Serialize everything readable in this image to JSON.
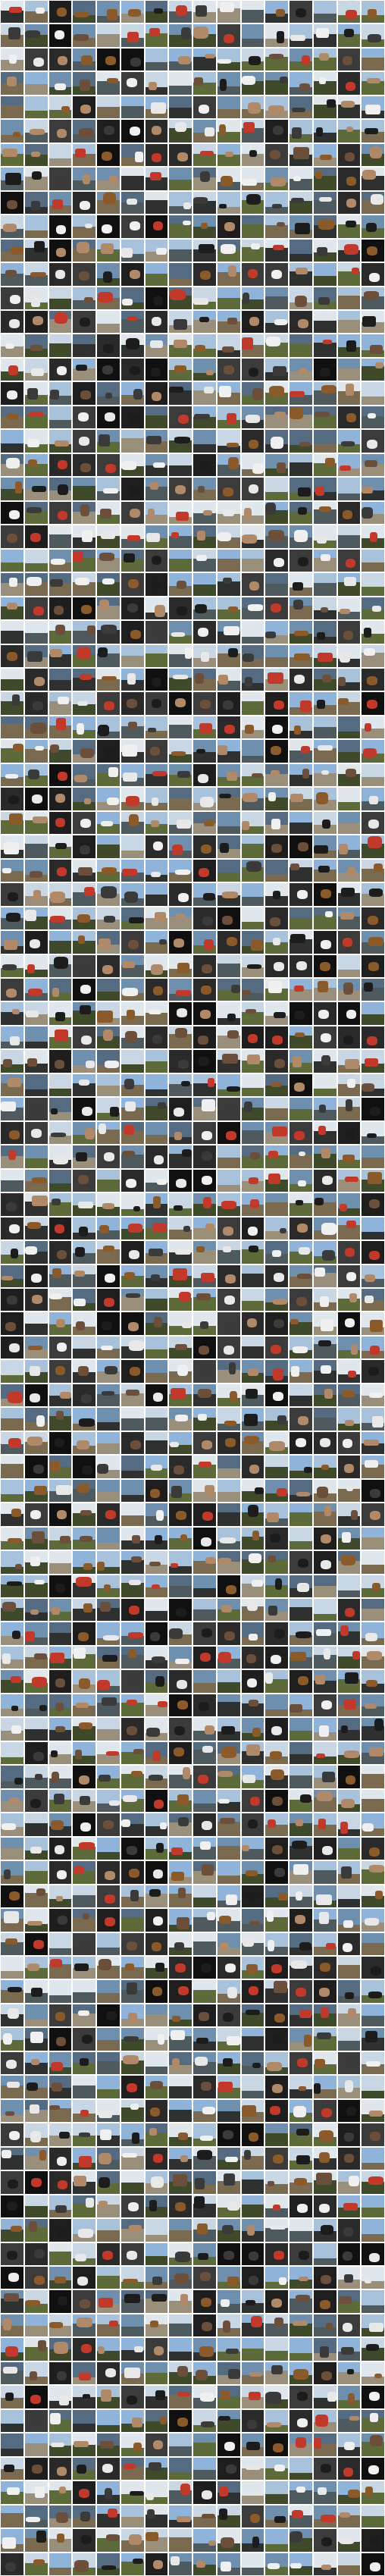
{
  "mosaic": {
    "columns": 16,
    "rows": 108,
    "background": "#ffffff",
    "tile_border": "#ffffff",
    "palette": {
      "sky": [
        "#8fb3d9",
        "#c9d6e3",
        "#6f8faf",
        "#dfe6ec",
        "#a9c2dc",
        "#556b82"
      ],
      "ground": [
        "#5d6b3a",
        "#7a6a4f",
        "#3e4a2a",
        "#9a8f7a",
        "#4f5a5f",
        "#2f3030"
      ],
      "subject": [
        "#1c1c1c",
        "#e8e8e8",
        "#8b5a2b",
        "#b08968",
        "#3a3a3a",
        "#c0392b",
        "#f0f0f0",
        "#6b4f3a"
      ],
      "dark": [
        "#101010",
        "#1e1e1e",
        "#2a2a2a",
        "#3b3b3b"
      ]
    }
  }
}
